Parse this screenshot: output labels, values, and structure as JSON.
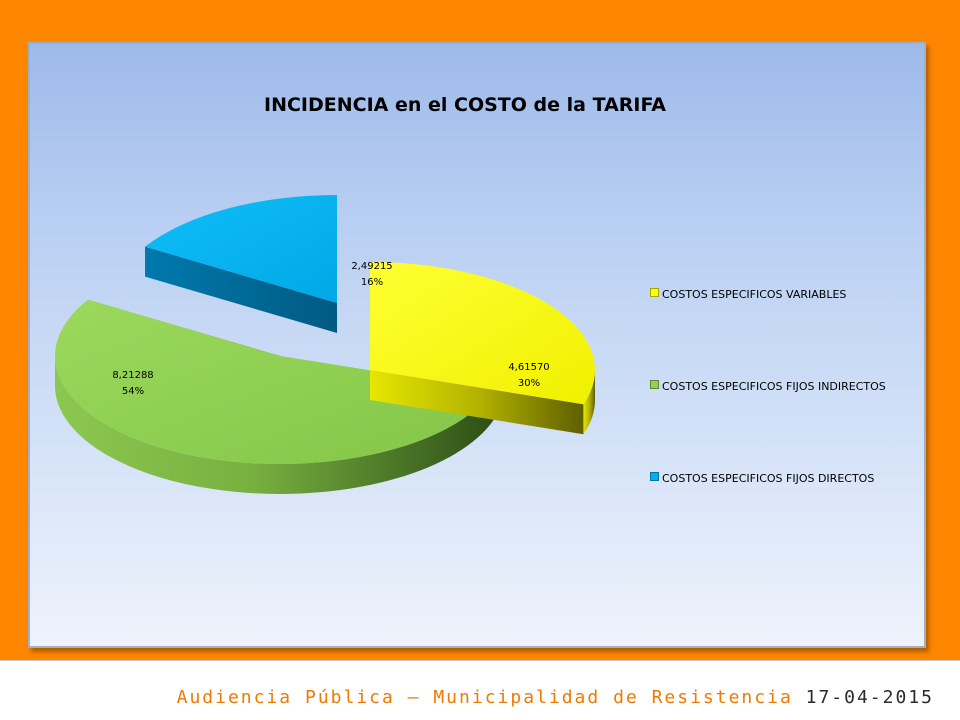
{
  "chart_data": {
    "type": "pie",
    "title": "INCIDENCIA en el COSTO de la TARIFA",
    "slices": [
      {
        "label": "COSTOS ESPECIFICOS VARIABLES",
        "value_text": "4,61570",
        "value": 4.6157,
        "percent": "30%",
        "color": "#ffff00"
      },
      {
        "label": "COSTOS ESPECIFICOS FIJOS INDIRECTOS",
        "value_text": "8,21288",
        "value": 8.21288,
        "percent": "54%",
        "color": "#92d050"
      },
      {
        "label": "COSTOS ESPECIFICOS FIJOS DIRECTOS",
        "value_text": "2,49215",
        "value": 2.49215,
        "percent": "16%",
        "color": "#00b0f0"
      }
    ],
    "legend_position": "right",
    "three_d": true,
    "exploded": true
  },
  "footer": {
    "caption": "Audiencia Pública – Municipalidad de Resistencia",
    "date": "17-04-2015"
  },
  "colors": {
    "frame": "#ff8600",
    "panel_top": "#9ebaea",
    "panel_bottom": "#eef3fb",
    "footer_caption": "#f07a00"
  }
}
